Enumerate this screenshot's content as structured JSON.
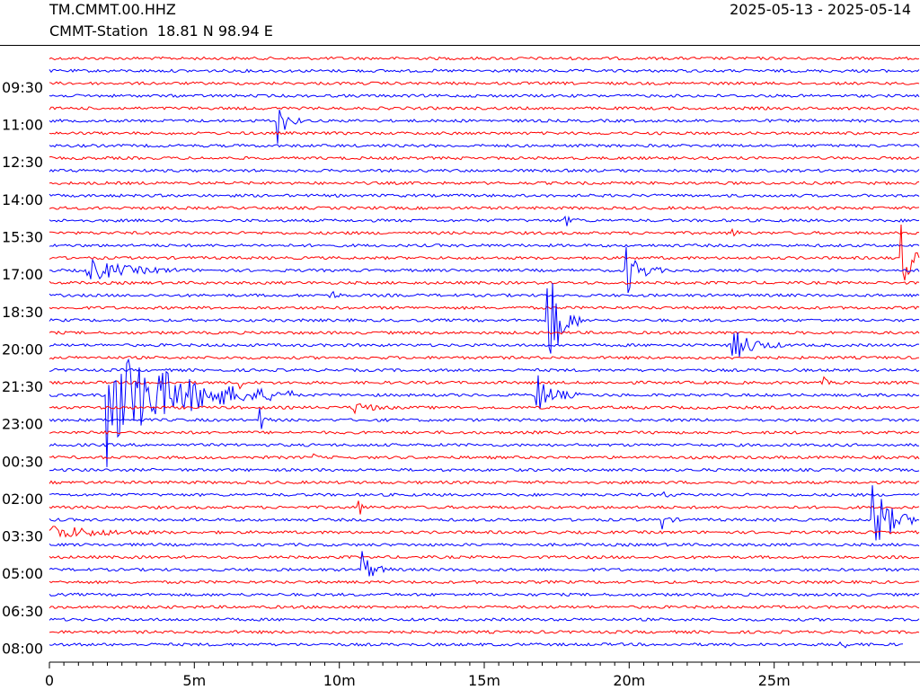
{
  "header": {
    "station": "TM.CMMT.00.HHZ",
    "location": "CMMT-Station  18.81 N 98.94 E",
    "date_range": "2025-05-13 - 2025-05-14"
  },
  "colors": {
    "trace_a": "#ff0000",
    "trace_b": "#0000ff",
    "axis": "#000000"
  },
  "chart_data": {
    "type": "line",
    "title": "",
    "xlabel": "",
    "ylabel": "",
    "x_unit": "minutes",
    "xlim": [
      0,
      30
    ],
    "x_ticks": [
      {
        "value": 0,
        "label": "0"
      },
      {
        "value": 5,
        "label": "5m"
      },
      {
        "value": 10,
        "label": "10m"
      },
      {
        "value": 15,
        "label": "15m"
      },
      {
        "value": 20,
        "label": "20m"
      },
      {
        "value": 25,
        "label": "25m"
      }
    ],
    "minor_tick_step": 0.5,
    "row_count": 48,
    "row_colors": [
      "red",
      "blue"
    ],
    "hour_labels": [
      {
        "row": 3,
        "label": "09:30"
      },
      {
        "row": 6,
        "label": "11:00"
      },
      {
        "row": 9,
        "label": "12:30"
      },
      {
        "row": 12,
        "label": "14:00"
      },
      {
        "row": 15,
        "label": "15:30"
      },
      {
        "row": 18,
        "label": "17:00"
      },
      {
        "row": 21,
        "label": "18:30"
      },
      {
        "row": 24,
        "label": "20:00"
      },
      {
        "row": 27,
        "label": "21:30"
      },
      {
        "row": 30,
        "label": "23:00"
      },
      {
        "row": 33,
        "label": "00:30"
      },
      {
        "row": 36,
        "label": "02:00"
      },
      {
        "row": 39,
        "label": "03:30"
      },
      {
        "row": 42,
        "label": "05:00"
      },
      {
        "row": 45,
        "label": "06:30"
      },
      {
        "row": 48,
        "label": "08:00"
      }
    ],
    "last_row_end_minute": 29.5,
    "events": [
      {
        "row": 5,
        "minute": 7.9,
        "amplitude": 3.0,
        "duration": 0.8
      },
      {
        "row": 13,
        "minute": 17.8,
        "amplitude": 0.6,
        "duration": 0.8
      },
      {
        "row": 14,
        "minute": 23.6,
        "amplitude": 0.5,
        "duration": 0.4
      },
      {
        "row": 14,
        "minute": 10.0,
        "amplitude": 0.5,
        "duration": 0.3
      },
      {
        "row": 17,
        "minute": 1.3,
        "amplitude": 1.8,
        "duration": 3.5
      },
      {
        "row": 17,
        "minute": 19.9,
        "amplitude": 3.5,
        "duration": 1.3
      },
      {
        "row": 16,
        "minute": 29.4,
        "amplitude": 5.0,
        "duration": 1.0
      },
      {
        "row": 19,
        "minute": 9.6,
        "amplitude": 1.5,
        "duration": 0.5
      },
      {
        "row": 21,
        "minute": 17.2,
        "amplitude": 9.0,
        "duration": 1.2
      },
      {
        "row": 23,
        "minute": 23.6,
        "amplitude": 2.5,
        "duration": 1.8
      },
      {
        "row": 26,
        "minute": 6.5,
        "amplitude": 1.0,
        "duration": 0.4
      },
      {
        "row": 26,
        "minute": 26.7,
        "amplitude": 0.6,
        "duration": 0.3
      },
      {
        "row": 27,
        "minute": 2.0,
        "amplitude": 9.0,
        "duration": 6.5
      },
      {
        "row": 27,
        "minute": 16.8,
        "amplitude": 3.0,
        "duration": 1.5
      },
      {
        "row": 28,
        "minute": 10.5,
        "amplitude": 1.0,
        "duration": 1.4
      },
      {
        "row": 29,
        "minute": 7.3,
        "amplitude": 1.0,
        "duration": 0.5
      },
      {
        "row": 32,
        "minute": 9.1,
        "amplitude": 0.4,
        "duration": 0.3
      },
      {
        "row": 35,
        "minute": 21.2,
        "amplitude": 0.6,
        "duration": 0.4
      },
      {
        "row": 36,
        "minute": 10.7,
        "amplitude": 0.8,
        "duration": 0.4
      },
      {
        "row": 37,
        "minute": 21.1,
        "amplitude": 1.2,
        "duration": 0.6
      },
      {
        "row": 37,
        "minute": 28.4,
        "amplitude": 6.0,
        "duration": 1.6
      },
      {
        "row": 38,
        "minute": 0.0,
        "amplitude": 1.2,
        "duration": 4.0
      },
      {
        "row": 41,
        "minute": 10.8,
        "amplitude": 2.5,
        "duration": 1.0
      },
      {
        "row": 47,
        "minute": 27.2,
        "amplitude": 1.0,
        "duration": 0.6
      }
    ]
  }
}
